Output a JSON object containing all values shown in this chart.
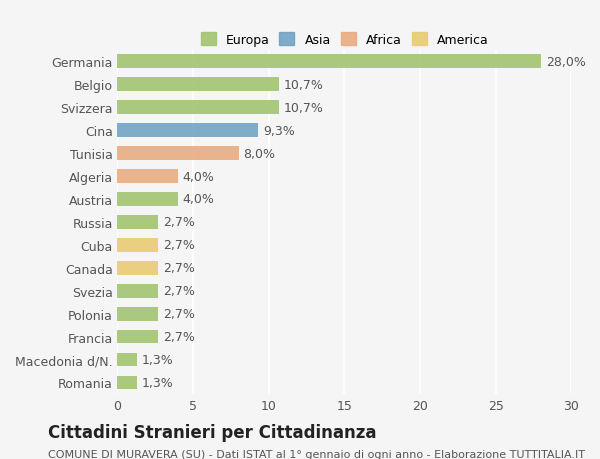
{
  "categories": [
    "Germania",
    "Belgio",
    "Svizzera",
    "Cina",
    "Tunisia",
    "Algeria",
    "Austria",
    "Russia",
    "Cuba",
    "Canada",
    "Svezia",
    "Polonia",
    "Francia",
    "Macedonia d/N.",
    "Romania"
  ],
  "values": [
    28.0,
    10.7,
    10.7,
    9.3,
    8.0,
    4.0,
    4.0,
    2.7,
    2.7,
    2.7,
    2.7,
    2.7,
    2.7,
    1.3,
    1.3
  ],
  "labels": [
    "28,0%",
    "10,7%",
    "10,7%",
    "9,3%",
    "8,0%",
    "4,0%",
    "4,0%",
    "2,7%",
    "2,7%",
    "2,7%",
    "2,7%",
    "2,7%",
    "2,7%",
    "1,3%",
    "1,3%"
  ],
  "colors": [
    "#9dc26a",
    "#9dc26a",
    "#9dc26a",
    "#6a9fc2",
    "#e8a87c",
    "#e8a87c",
    "#9dc26a",
    "#9dc26a",
    "#e8c96a",
    "#e8c96a",
    "#9dc26a",
    "#9dc26a",
    "#9dc26a",
    "#9dc26a",
    "#9dc26a"
  ],
  "legend": [
    {
      "label": "Europa",
      "color": "#9dc26a"
    },
    {
      "label": "Asia",
      "color": "#6a9fc2"
    },
    {
      "label": "Africa",
      "color": "#e8a87c"
    },
    {
      "label": "America",
      "color": "#e8c96a"
    }
  ],
  "xlim": [
    0,
    30
  ],
  "xticks": [
    0,
    5,
    10,
    15,
    20,
    25,
    30
  ],
  "title": "Cittadini Stranieri per Cittadinanza",
  "subtitle": "COMUNE DI MURAVERA (SU) - Dati ISTAT al 1° gennaio di ogni anno - Elaborazione TUTTITALIA.IT",
  "bg_color": "#f5f5f5",
  "grid_color": "#ffffff",
  "bar_height": 0.6,
  "label_fontsize": 9,
  "title_fontsize": 12,
  "subtitle_fontsize": 8
}
